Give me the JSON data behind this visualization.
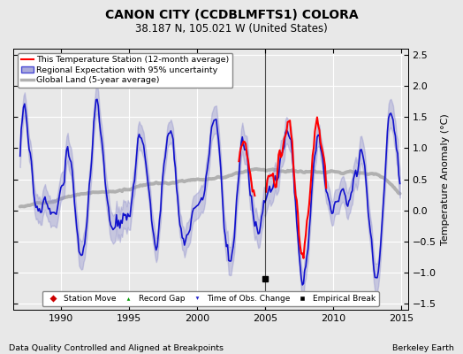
{
  "title": "CANON CITY (CCDBLMFTS1) COLORA",
  "subtitle": "38.187 N, 105.021 W (United States)",
  "ylabel": "Temperature Anomaly (°C)",
  "xlabel_left": "Data Quality Controlled and Aligned at Breakpoints",
  "xlabel_right": "Berkeley Earth",
  "xlim": [
    1986.5,
    2015.5
  ],
  "ylim": [
    -1.6,
    2.6
  ],
  "yticks": [
    -1.5,
    -1.0,
    -0.5,
    0.0,
    0.5,
    1.0,
    1.5,
    2.0,
    2.5
  ],
  "xticks": [
    1990,
    1995,
    2000,
    2005,
    2010,
    2015
  ],
  "bg_color": "#e8e8e8",
  "plot_bg_color": "#e8e8e8",
  "grid_color": "#ffffff",
  "empirical_break_x": 2005.0,
  "legend_items": [
    {
      "label": "This Temperature Station (12-month average)",
      "color": "#ff0000",
      "lw": 1.5
    },
    {
      "label": "Regional Expectation with 95% uncertainty",
      "color": "#4444ff",
      "lw": 1.5
    },
    {
      "label": "Global Land (5-year average)",
      "color": "#aaaaaa",
      "lw": 2.5
    }
  ]
}
